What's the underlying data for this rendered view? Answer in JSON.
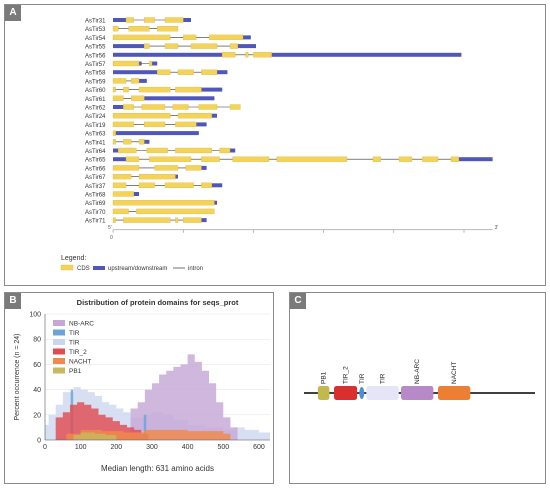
{
  "panels": {
    "a": "A",
    "b": "B",
    "c": "C"
  },
  "gene_structure": {
    "genes": [
      {
        "name": "AsTir31",
        "cds": [
          [
            55,
            58
          ],
          [
            62,
            66
          ],
          [
            70,
            77
          ]
        ],
        "utr": [
          [
            50,
            55
          ],
          [
            77,
            80
          ]
        ]
      },
      {
        "name": "AsTir53",
        "cds": [
          [
            50,
            52
          ],
          [
            56,
            64
          ],
          [
            67,
            75
          ]
        ],
        "utr": []
      },
      {
        "name": "AsTir54",
        "cds": [
          [
            50,
            72
          ],
          [
            77,
            82
          ],
          [
            87,
            100
          ]
        ],
        "utr": [
          [
            100,
            103
          ]
        ]
      },
      {
        "name": "AsTir55",
        "cds": [
          [
            62,
            64
          ],
          [
            70,
            75
          ],
          [
            80,
            90
          ],
          [
            95,
            98
          ]
        ],
        "utr": [
          [
            50,
            62
          ],
          [
            98,
            105
          ]
        ]
      },
      {
        "name": "AsTir56",
        "cds": [
          [
            92,
            97
          ],
          [
            101,
            102
          ],
          [
            104,
            111
          ]
        ],
        "utr": [
          [
            50,
            92
          ],
          [
            111,
            184
          ]
        ]
      },
      {
        "name": "AsTir57",
        "cds": [
          [
            50,
            60
          ],
          [
            64,
            65
          ]
        ],
        "utr": [
          [
            60,
            61
          ],
          [
            65,
            67
          ]
        ]
      },
      {
        "name": "AsTir58",
        "cds": [
          [
            67,
            72
          ],
          [
            75,
            81
          ],
          [
            84,
            90
          ]
        ],
        "utr": [
          [
            50,
            67
          ],
          [
            90,
            94
          ]
        ]
      },
      {
        "name": "AsTir59",
        "cds": [
          [
            50,
            55
          ],
          [
            57,
            60
          ]
        ],
        "utr": [
          [
            60,
            63
          ]
        ]
      },
      {
        "name": "AsTir60",
        "cds": [
          [
            50,
            51
          ],
          [
            54,
            56
          ],
          [
            60,
            72
          ],
          [
            74,
            84
          ]
        ],
        "utr": [
          [
            84,
            92
          ]
        ]
      },
      {
        "name": "AsTir61",
        "cds": [
          [
            50,
            54
          ],
          [
            57,
            62
          ]
        ],
        "utr": [
          [
            62,
            89
          ]
        ]
      },
      {
        "name": "AsTir62",
        "cds": [
          [
            54,
            58
          ],
          [
            61,
            70
          ],
          [
            73,
            79
          ],
          [
            83,
            90
          ],
          [
            95,
            99
          ]
        ],
        "utr": [
          [
            50,
            54
          ]
        ]
      },
      {
        "name": "AsTir24",
        "cds": [
          [
            50,
            72
          ],
          [
            75,
            88
          ]
        ],
        "utr": [
          [
            88,
            90
          ]
        ]
      },
      {
        "name": "AsTir19",
        "cds": [
          [
            50,
            58
          ],
          [
            62,
            70
          ],
          [
            74,
            82
          ]
        ],
        "utr": [
          [
            82,
            86
          ]
        ]
      },
      {
        "name": "AsTir63",
        "cds": [
          [
            50,
            51
          ]
        ],
        "utr": [
          [
            51,
            83
          ]
        ]
      },
      {
        "name": "AsTir41",
        "cds": [
          [
            50,
            51
          ],
          [
            54,
            57
          ],
          [
            60,
            62
          ]
        ],
        "utr": [
          [
            62,
            64
          ]
        ]
      },
      {
        "name": "AsTir64",
        "cds": [
          [
            52,
            59
          ],
          [
            63,
            71
          ],
          [
            74,
            88
          ],
          [
            91,
            95
          ]
        ],
        "utr": [
          [
            50,
            52
          ],
          [
            95,
            97
          ]
        ]
      },
      {
        "name": "AsTir65",
        "cds": [
          [
            55,
            60
          ],
          [
            64,
            80
          ],
          [
            84,
            91
          ],
          [
            96,
            110
          ],
          [
            113,
            140
          ],
          [
            150,
            153
          ],
          [
            160,
            165
          ],
          [
            169,
            175
          ],
          [
            180,
            183
          ]
        ],
        "utr": [
          [
            50,
            55
          ],
          [
            183,
            196
          ]
        ]
      },
      {
        "name": "AsTir66",
        "cds": [
          [
            50,
            60
          ],
          [
            66,
            75
          ],
          [
            78,
            84
          ]
        ],
        "utr": [
          [
            84,
            86
          ]
        ]
      },
      {
        "name": "AsTir67",
        "cds": [
          [
            50,
            57
          ],
          [
            60,
            74
          ]
        ],
        "utr": [
          [
            74,
            75
          ]
        ]
      },
      {
        "name": "AsTir37",
        "cds": [
          [
            50,
            55
          ],
          [
            60,
            66
          ],
          [
            70,
            81
          ],
          [
            84,
            88
          ]
        ],
        "utr": [
          [
            88,
            92
          ]
        ]
      },
      {
        "name": "AsTir68",
        "cds": [
          [
            50,
            58
          ]
        ],
        "utr": [
          [
            58,
            60
          ]
        ]
      },
      {
        "name": "AsTir69",
        "cds": [
          [
            50,
            89
          ]
        ],
        "utr": [
          [
            89,
            90
          ]
        ]
      },
      {
        "name": "AsTir70",
        "cds": [
          [
            50,
            56
          ],
          [
            59,
            89
          ]
        ],
        "utr": []
      },
      {
        "name": "AsTir71",
        "cds": [
          [
            50,
            51
          ],
          [
            54,
            72
          ],
          [
            74,
            75
          ],
          [
            77,
            84
          ]
        ],
        "utr": [
          [
            84,
            86
          ]
        ]
      }
    ],
    "scale_labels": [
      "0",
      "5'",
      "3'"
    ],
    "legend_title": "Legend:",
    "legend": {
      "cds": "CDS",
      "utr": "upstream/downstream",
      "intron": "intron"
    },
    "colors": {
      "cds": "#f3d35a",
      "cds_edge": "#d9b431",
      "utr": "#4f58b8",
      "intron": "#333333"
    }
  },
  "chart_data": {
    "type": "area",
    "title": "Distribution of protein domains for seqs_prot",
    "xlabel": "Median length: 631 amino acids",
    "ylabel": "Percent occurrence (n = 24)",
    "xlim": [
      0,
      631
    ],
    "ylim": [
      0,
      100
    ],
    "x_ticks": [
      0,
      100,
      200,
      300,
      400,
      500,
      600
    ],
    "y_ticks": [
      0,
      20,
      40,
      60,
      80,
      100
    ],
    "legend_position": "top-left",
    "series": [
      {
        "name": "NB-ARC",
        "color": "#c6a7d6",
        "x": [
          0,
          40,
          90,
          150,
          200,
          240,
          260,
          280,
          300,
          320,
          340,
          360,
          380,
          400,
          420,
          440,
          460,
          480,
          500,
          520,
          540,
          560
        ],
        "values": [
          0,
          0,
          0,
          0,
          0,
          25,
          30,
          40,
          45,
          52,
          55,
          58,
          60,
          68,
          62,
          55,
          45,
          30,
          18,
          10,
          0,
          0
        ]
      },
      {
        "name": "TIR",
        "color": "#6ea3d8",
        "x": [
          70,
          72,
          79,
          81,
          275,
          277,
          284,
          286
        ],
        "values": [
          0,
          40,
          40,
          0,
          0,
          20,
          20,
          0
        ]
      },
      {
        "name": "TIR",
        "color": "#c9d6ee",
        "x": [
          0,
          10,
          30,
          50,
          80,
          100,
          120,
          140,
          160,
          180,
          200,
          220,
          240,
          260,
          280,
          300,
          330,
          360,
          400,
          450,
          500,
          530,
          560,
          600,
          631
        ],
        "values": [
          12,
          20,
          28,
          38,
          42,
          40,
          38,
          35,
          30,
          28,
          25,
          22,
          18,
          18,
          20,
          22,
          20,
          16,
          12,
          10,
          8,
          10,
          8,
          6,
          5
        ]
      },
      {
        "name": "TIR_2",
        "color": "#e04c53",
        "x": [
          20,
          30,
          50,
          70,
          90,
          110,
          130,
          150,
          170,
          190,
          210,
          230,
          250,
          270,
          290
        ],
        "values": [
          0,
          18,
          22,
          28,
          30,
          28,
          25,
          20,
          18,
          15,
          12,
          10,
          8,
          5,
          0
        ]
      },
      {
        "name": "NACHT",
        "color": "#f08a4b",
        "x": [
          40,
          60,
          100,
          160,
          220,
          280,
          340,
          400,
          460,
          500,
          520
        ],
        "values": [
          0,
          5,
          8,
          7,
          6,
          8,
          8,
          7,
          7,
          5,
          0
        ]
      },
      {
        "name": "PB1",
        "color": "#c8b85e",
        "x": [
          60,
          80,
          100,
          140,
          170,
          200
        ],
        "values": [
          0,
          4,
          6,
          5,
          4,
          0
        ]
      }
    ]
  },
  "domain_architecture": {
    "domains": [
      {
        "label": "PB1",
        "color": "#c2b94e",
        "shape": "rect",
        "pos": 0.06,
        "len": 0.05
      },
      {
        "label": "TIR_2",
        "color": "#d92f2f",
        "shape": "rect",
        "pos": 0.13,
        "len": 0.1
      },
      {
        "label": "TIR",
        "color": "#4a90d9",
        "shape": "ellipse",
        "pos": 0.24,
        "len": 0.02
      },
      {
        "label": "TIR",
        "color": "#e4e6f7",
        "shape": "rect",
        "pos": 0.27,
        "len": 0.14
      },
      {
        "label": "NB-ARC",
        "color": "#b889c7",
        "shape": "rect",
        "pos": 0.42,
        "len": 0.14
      },
      {
        "label": "NACHT",
        "color": "#ec7f33",
        "shape": "rect",
        "pos": 0.58,
        "len": 0.14
      }
    ]
  }
}
